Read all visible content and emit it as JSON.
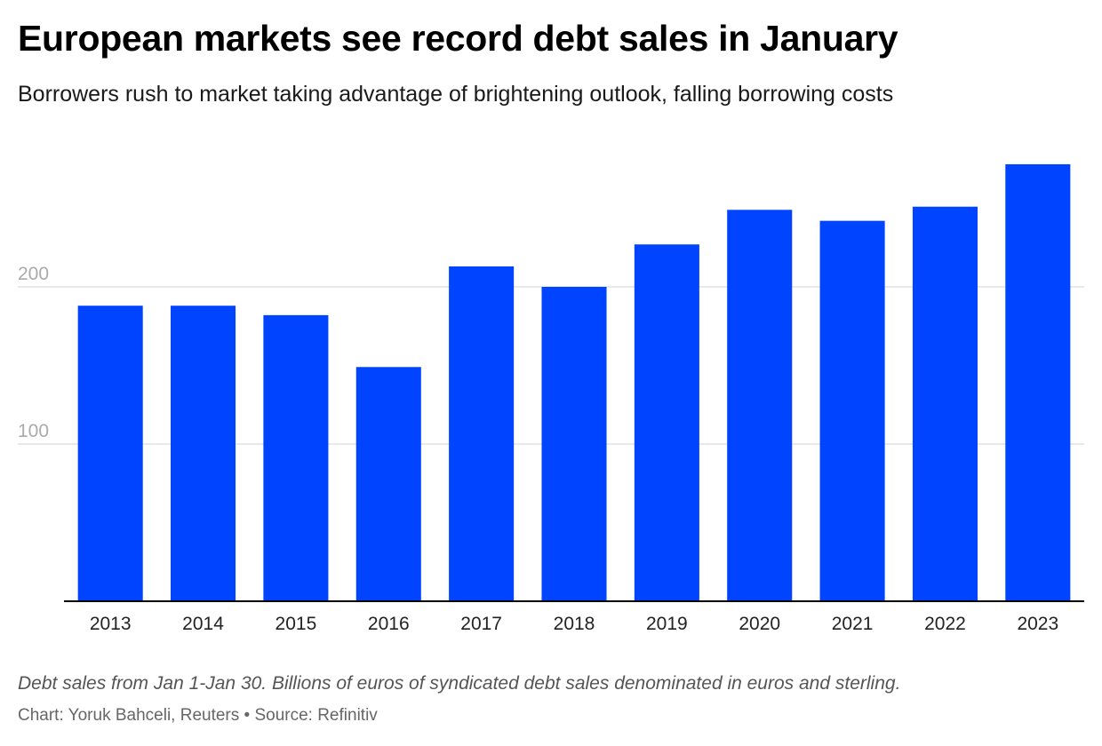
{
  "header": {
    "title": "European markets see record debt sales in January",
    "subtitle": "Borrowers rush to market taking advantage of brightening outlook, falling borrowing costs"
  },
  "footer": {
    "note": "Debt sales from Jan 1-Jan 30. Billions of euros of syndicated debt sales denominated in euros and sterling.",
    "credit": "Chart: Yoruk Bahceli, Reuters • Source: Refinitiv"
  },
  "colors": {
    "bar": "#0044ff",
    "grid": "#e2e2e2",
    "axis": "#000000",
    "ytick": "#aaaaaa",
    "xtick": "#222222"
  },
  "chart_data": {
    "type": "bar",
    "title": "European markets see record debt sales in January",
    "subtitle": "Borrowers rush to market taking advantage of brightening outlook, falling borrowing costs",
    "xlabel": "",
    "ylabel": "",
    "categories": [
      "2013",
      "2014",
      "2015",
      "2016",
      "2017",
      "2018",
      "2019",
      "2020",
      "2021",
      "2022",
      "2023"
    ],
    "values": [
      188,
      188,
      182,
      149,
      213,
      200,
      227,
      249,
      242,
      251,
      278
    ],
    "ylim": [
      0,
      300
    ],
    "yticks": [
      100,
      200
    ],
    "grid": true,
    "legend": "none"
  }
}
